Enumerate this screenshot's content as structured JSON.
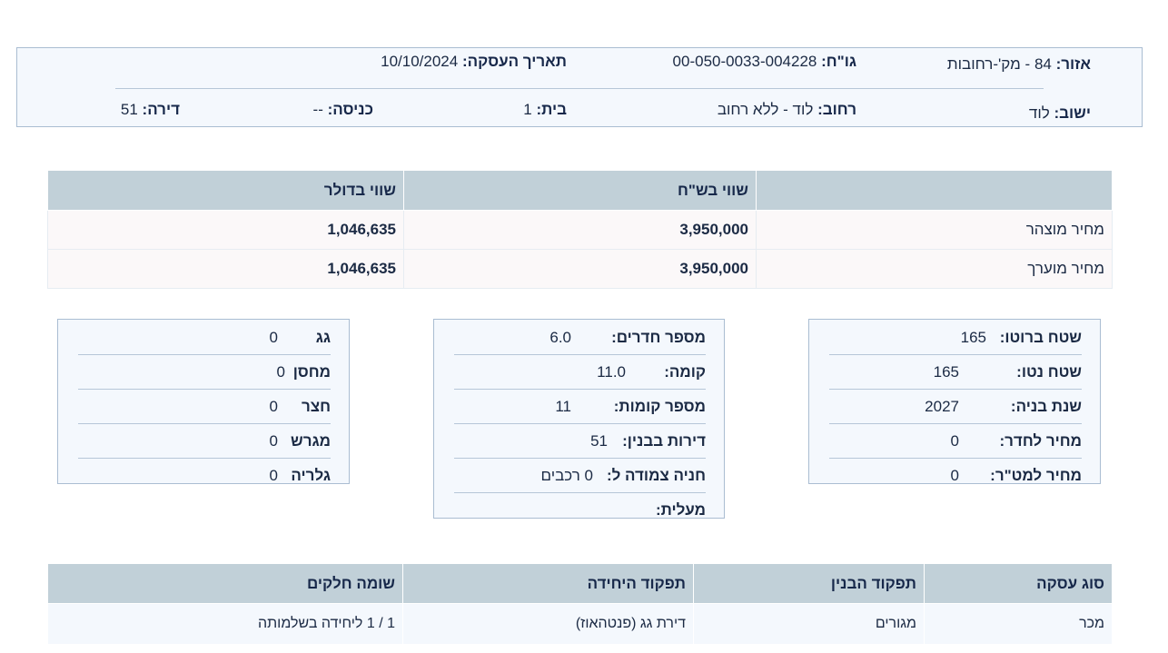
{
  "header": {
    "area_label": "אזור:",
    "area_value": "84 - מק'-רחובות",
    "gush_label": "גו\"ח:",
    "gush_value": "00-050-0033-004228",
    "date_label": "תאריך העסקה:",
    "date_value": "10/10/2024",
    "city_label": "ישוב:",
    "city_value": "לוד",
    "street_label": "רחוב:",
    "street_value": "לוד - ללא רחוב",
    "house_label": "בית:",
    "house_value": "1",
    "entrance_label": "כניסה:",
    "entrance_value": "--",
    "apt_label": "דירה:",
    "apt_value": "51"
  },
  "prices": {
    "headers": [
      "",
      "שווי בש\"ח",
      "שווי בדולר"
    ],
    "rows": [
      {
        "label": "מחיר מוצהר",
        "ils": "3,950,000",
        "usd": "1,046,635"
      },
      {
        "label": "מחיר מוערך",
        "ils": "3,950,000",
        "usd": "1,046,635"
      }
    ]
  },
  "box_right": [
    {
      "k": "שטח ברוטו:",
      "v": "165"
    },
    {
      "k": "שטח נטו:",
      "v": "165"
    },
    {
      "k": "שנת בניה:",
      "v": "2027"
    },
    {
      "k": "מחיר לחדר:",
      "v": "0"
    },
    {
      "k": "מחיר למט\"ר:",
      "v": "0"
    }
  ],
  "box_middle": [
    {
      "k": "מספר חדרים:",
      "v": "6.0"
    },
    {
      "k": "קומה:",
      "v": "11.0"
    },
    {
      "k": "מספר קומות:",
      "v": "11"
    },
    {
      "k": "דירות בבנין:",
      "v": "51"
    },
    {
      "k": "חניה צמודה ל:",
      "v": "0 רכבים"
    },
    {
      "k": "מעלית:",
      "v": ""
    }
  ],
  "box_left": [
    {
      "k": "גג",
      "v": "0"
    },
    {
      "k": "מחסן",
      "v": "0"
    },
    {
      "k": "חצר",
      "v": "0"
    },
    {
      "k": "מגרש",
      "v": "0"
    },
    {
      "k": "גלריה",
      "v": "0"
    }
  ],
  "deal": {
    "headers": [
      "סוג עסקה",
      "תפקוד הבנין",
      "תפקוד היחידה",
      "שומה חלקים"
    ],
    "values": [
      "מכר",
      "מגורים",
      "דירת גג (פנטהאוז)",
      "1 / 1 ליחידה בשלמותה"
    ]
  }
}
